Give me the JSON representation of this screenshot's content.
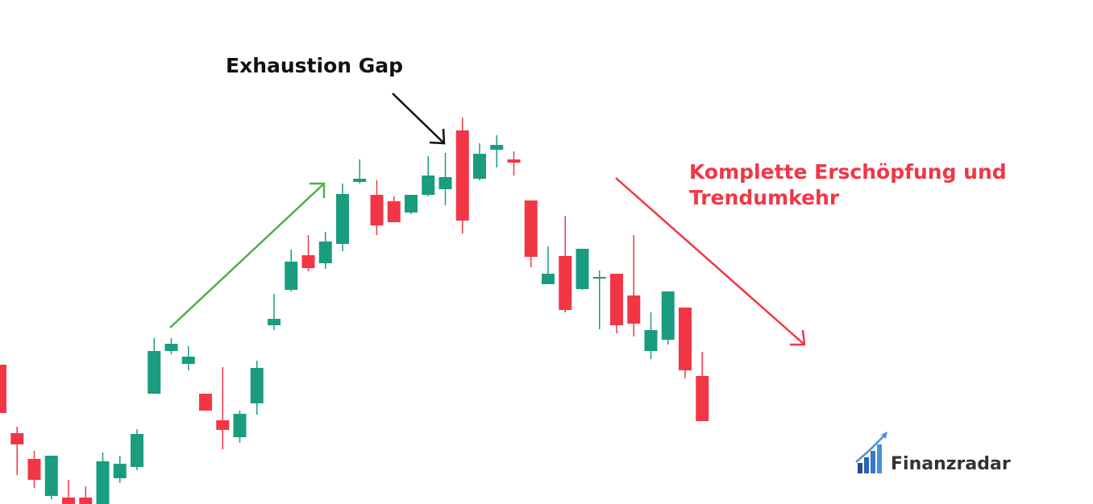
{
  "chart_data": {
    "type": "candlestick",
    "open": [
      173,
      88,
      56,
      10,
      8,
      8,
      0,
      32,
      46,
      137,
      190,
      174,
      137,
      104,
      83,
      125,
      222,
      266,
      309,
      299,
      323,
      400,
      384,
      376,
      362,
      384,
      391,
      464,
      404,
      440,
      428,
      377,
      273,
      308,
      267,
      280,
      286,
      259,
      190,
      204,
      244,
      159
    ],
    "high": [
      173,
      96,
      66,
      60,
      30,
      22,
      64,
      60,
      93,
      206,
      206,
      196,
      137,
      170,
      116,
      178,
      261,
      316,
      334,
      338,
      398,
      428,
      402,
      382,
      384,
      432,
      436,
      480,
      448,
      458,
      438,
      377,
      320,
      358,
      317,
      290,
      286,
      334,
      238,
      264,
      244,
      189
    ],
    "low": [
      113,
      36,
      20,
      6,
      0,
      0,
      0,
      26,
      42,
      137,
      186,
      166,
      116,
      68,
      76,
      111,
      216,
      264,
      289,
      292,
      314,
      398,
      334,
      350,
      360,
      382,
      371,
      336,
      402,
      418,
      408,
      294,
      273,
      238,
      266,
      217,
      212,
      208,
      180,
      198,
      156,
      103
    ],
    "close": [
      113,
      74,
      30,
      60,
      0,
      0,
      53,
      50,
      87,
      190,
      199,
      183,
      116,
      92,
      112,
      169,
      230,
      301,
      293,
      326,
      385,
      404,
      346,
      350,
      384,
      408,
      406,
      352,
      435,
      446,
      424,
      307,
      286,
      241,
      317,
      282,
      222,
      224,
      216,
      264,
      166,
      103
    ],
    "up_color": "#1a9c80",
    "down_color": "#f23645",
    "ylim": [
      0,
      626
    ],
    "annotations": [
      {
        "text": "Exhaustion Gap"
      },
      {
        "lines": [
          "Komplette Erschöpfung und",
          "Trendumkehr"
        ]
      }
    ],
    "logo": "Finanzradar"
  }
}
